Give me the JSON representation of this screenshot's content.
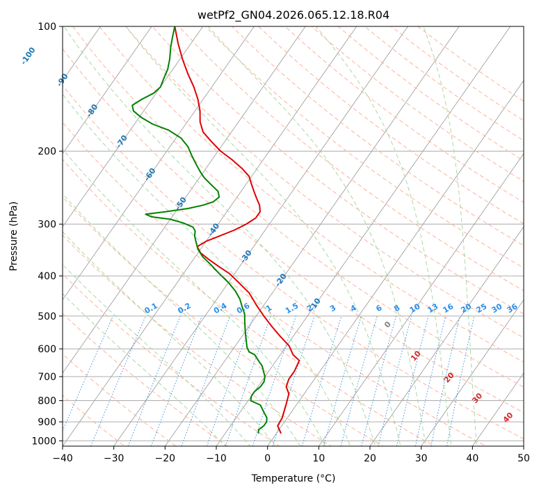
{
  "chart_data": {
    "type": "line",
    "title": "wetPf2_GN04.2026.065.12.18.R04",
    "xlabel": "Temperature (°C)",
    "ylabel": "Pressure (hPa)",
    "xlim": [
      -40,
      50
    ],
    "ylim": [
      1030,
      100
    ],
    "y_scale": "log",
    "x_ticks": [
      "−40",
      "−30",
      "−20",
      "−10",
      "0",
      "10",
      "20",
      "30",
      "40",
      "50"
    ],
    "y_ticks": [
      "100",
      "200",
      "300",
      "400",
      "500",
      "600",
      "700",
      "800",
      "900",
      "1000"
    ],
    "grid": true,
    "colors": {
      "temperature": "#e00000",
      "dewpoint": "#008000",
      "isotherm": "#a0a0a0",
      "dry_adiabat": "#ffb09a",
      "moist_adiabat": "#a8d8a0",
      "mixing_ratio": "#3a8fe0",
      "isotherm_label": "#1f77b4",
      "mixing_label": "#2a8ee8",
      "wet_bulb_label": "#d62728"
    },
    "isotherm_labels": [
      {
        "text": "-100",
        "t": -100,
        "p": 118
      },
      {
        "text": "-90",
        "t": -90,
        "p": 135
      },
      {
        "text": "-80",
        "t": -80,
        "p": 160
      },
      {
        "text": "-70",
        "t": -70,
        "p": 190
      },
      {
        "text": "-60",
        "t": -60,
        "p": 228
      },
      {
        "text": "-50",
        "t": -50,
        "p": 268
      },
      {
        "text": "-40",
        "t": -40,
        "p": 310
      },
      {
        "text": "-30",
        "t": -30,
        "p": 360
      },
      {
        "text": "-20",
        "t": -20,
        "p": 410
      },
      {
        "text": "-10",
        "t": -10,
        "p": 470
      }
    ],
    "mixing_ratio_labels": [
      "0.1",
      "0.2",
      "0.4",
      "0.6",
      "1",
      "1.5",
      "2",
      "3",
      "4",
      "6",
      "8",
      "10",
      "13",
      "16",
      "20",
      "25",
      "30",
      "36"
    ],
    "mixing_ratio_label_x": [
      -22.5,
      -16,
      -9,
      -4.5,
      0.5,
      5,
      8.5,
      13,
      17,
      22,
      25.5,
      29,
      32.5,
      35.5,
      39,
      42,
      45,
      48
    ],
    "wet_bulb_labels": [
      {
        "text": "0",
        "t": 23.5,
        "p": 525,
        "color": "gray"
      },
      {
        "text": "10",
        "t": 29,
        "p": 625,
        "color": "red"
      },
      {
        "text": "20",
        "t": 35.5,
        "p": 705,
        "color": "red"
      },
      {
        "text": "30",
        "t": 41,
        "p": 790,
        "color": "red"
      },
      {
        "text": "40",
        "t": 47,
        "p": 880,
        "color": "red"
      }
    ],
    "series": [
      {
        "key": "temperature",
        "points": [
          [
            0.9,
            960
          ],
          [
            -0.8,
            920
          ],
          [
            -1.0,
            880
          ],
          [
            -1.5,
            850
          ],
          [
            -2.2,
            810
          ],
          [
            -3.0,
            770
          ],
          [
            -4.5,
            740
          ],
          [
            -5.0,
            710
          ],
          [
            -5.0,
            680
          ],
          [
            -5.5,
            640
          ],
          [
            -7.5,
            620
          ],
          [
            -9.5,
            590
          ],
          [
            -12.5,
            560
          ],
          [
            -15.5,
            530
          ],
          [
            -18.5,
            500
          ],
          [
            -21.5,
            470
          ],
          [
            -24.5,
            440
          ],
          [
            -28.0,
            415
          ],
          [
            -31.0,
            395
          ],
          [
            -34.0,
            380
          ],
          [
            -37.0,
            365
          ],
          [
            -39.5,
            352
          ],
          [
            -41.0,
            340
          ],
          [
            -40.0,
            330
          ],
          [
            -38.0,
            320
          ],
          [
            -36.0,
            310
          ],
          [
            -34.5,
            300
          ],
          [
            -33.5,
            290
          ],
          [
            -33.5,
            280
          ],
          [
            -34.5,
            270
          ],
          [
            -36.0,
            260
          ],
          [
            -37.5,
            250
          ],
          [
            -39.0,
            240
          ],
          [
            -40.5,
            230
          ],
          [
            -43.0,
            220
          ],
          [
            -46.0,
            210
          ],
          [
            -49.5,
            200
          ],
          [
            -52.5,
            190
          ],
          [
            -55.5,
            180
          ],
          [
            -57.5,
            170
          ],
          [
            -59.0,
            160
          ],
          [
            -61.0,
            150
          ],
          [
            -63.5,
            140
          ],
          [
            -66.5,
            130
          ],
          [
            -69.5,
            120
          ],
          [
            -72.5,
            110
          ],
          [
            -75.5,
            100
          ]
        ]
      },
      {
        "key": "dewpoint",
        "points": [
          [
            -3.5,
            960
          ],
          [
            -4.0,
            940
          ],
          [
            -3.5,
            920
          ],
          [
            -3.5,
            900
          ],
          [
            -4.0,
            880
          ],
          [
            -5.5,
            850
          ],
          [
            -7.0,
            820
          ],
          [
            -9.5,
            800
          ],
          [
            -10.0,
            780
          ],
          [
            -10.0,
            760
          ],
          [
            -9.5,
            740
          ],
          [
            -9.5,
            720
          ],
          [
            -10.0,
            700
          ],
          [
            -11.0,
            680
          ],
          [
            -12.0,
            660
          ],
          [
            -13.5,
            640
          ],
          [
            -15.0,
            620
          ],
          [
            -16.5,
            610
          ],
          [
            -17.5,
            595
          ],
          [
            -18.5,
            575
          ],
          [
            -19.5,
            555
          ],
          [
            -20.5,
            535
          ],
          [
            -21.5,
            515
          ],
          [
            -22.5,
            495
          ],
          [
            -24.0,
            475
          ],
          [
            -25.5,
            455
          ],
          [
            -27.5,
            435
          ],
          [
            -30.0,
            415
          ],
          [
            -33.0,
            395
          ],
          [
            -36.0,
            375
          ],
          [
            -38.5,
            360
          ],
          [
            -40.5,
            345
          ],
          [
            -42.0,
            330
          ],
          [
            -43.0,
            320
          ],
          [
            -43.5,
            312
          ],
          [
            -44.5,
            305
          ],
          [
            -47.0,
            298
          ],
          [
            -50.0,
            292
          ],
          [
            -54.0,
            288
          ],
          [
            -55.5,
            284
          ],
          [
            -52.0,
            280
          ],
          [
            -48.0,
            275
          ],
          [
            -45.5,
            270
          ],
          [
            -44.0,
            265
          ],
          [
            -43.5,
            258
          ],
          [
            -44.5,
            250
          ],
          [
            -47.0,
            240
          ],
          [
            -49.0,
            232
          ],
          [
            -50.5,
            225
          ],
          [
            -52.5,
            215
          ],
          [
            -54.5,
            205
          ],
          [
            -56.5,
            195
          ],
          [
            -59.0,
            186
          ],
          [
            -62.5,
            178
          ],
          [
            -66.5,
            172
          ],
          [
            -69.5,
            166
          ],
          [
            -72.0,
            160
          ],
          [
            -73.0,
            155
          ],
          [
            -72.0,
            150
          ],
          [
            -70.5,
            145
          ],
          [
            -70.0,
            140
          ],
          [
            -70.5,
            134
          ],
          [
            -71.0,
            127
          ],
          [
            -72.0,
            120
          ],
          [
            -73.5,
            112
          ],
          [
            -74.5,
            106
          ],
          [
            -75.5,
            100
          ]
        ]
      }
    ]
  }
}
